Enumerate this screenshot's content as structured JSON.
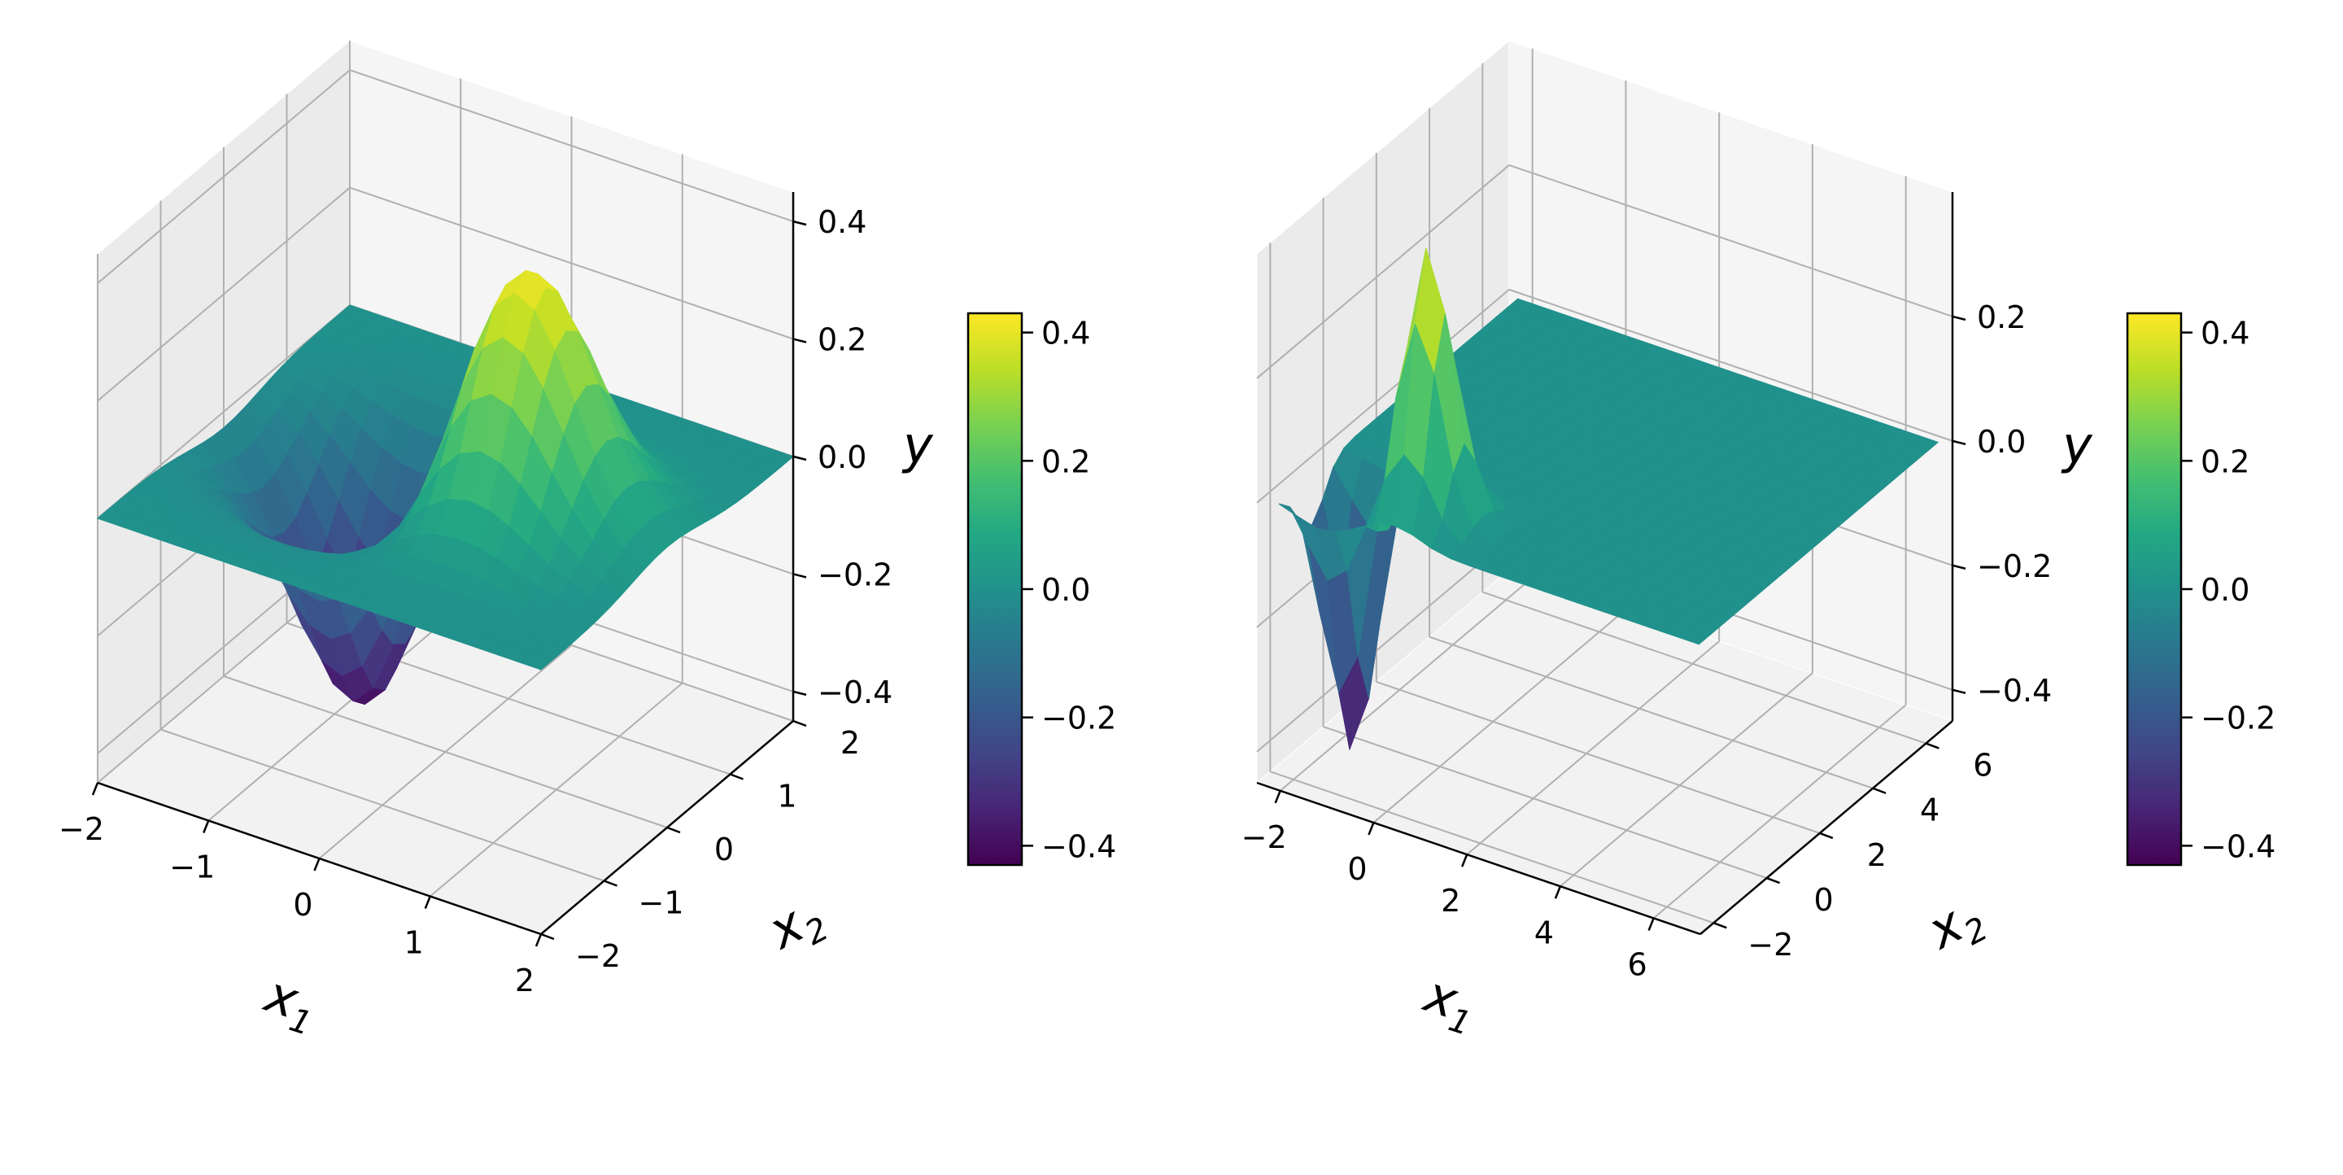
{
  "chart_data": [
    {
      "type": "surface",
      "xlabel": "x",
      "xlabel_sub": "1",
      "ylabel": "x",
      "ylabel_sub": "2",
      "zlabel": "y",
      "xlim": [
        -2,
        2
      ],
      "ylim": [
        -2,
        2
      ],
      "zlim": [
        -0.45,
        0.45
      ],
      "x_ticks": [
        "−2",
        "−1",
        "0",
        "1",
        "2"
      ],
      "y_ticks": [
        "−2",
        "−1",
        "0",
        "1",
        "2"
      ],
      "z_ticks": [
        "−0.4",
        "−0.2",
        "0.0",
        "0.2",
        "0.4"
      ],
      "x_tick_values": [
        -2,
        -1,
        0,
        1,
        2
      ],
      "y_tick_values": [
        -2,
        -1,
        0,
        1,
        2
      ],
      "z_tick_values": [
        -0.4,
        -0.2,
        0.0,
        0.2,
        0.4
      ],
      "features": [
        {
          "shape": "bump",
          "x": -0.71,
          "y": 0.0,
          "amplitude": -0.43,
          "spread": 0.55
        },
        {
          "shape": "bump",
          "x": 0.71,
          "y": 0.0,
          "amplitude": 0.43,
          "spread": 0.55
        }
      ],
      "grid": true,
      "colormap": "viridis",
      "colorbar": {
        "ticks": [
          "−0.4",
          "−0.2",
          "0.0",
          "0.2",
          "0.4"
        ],
        "values": [
          -0.4,
          -0.2,
          0.0,
          0.2,
          0.4
        ],
        "range": [
          -0.43,
          0.43
        ]
      }
    },
    {
      "type": "surface",
      "xlabel": "x",
      "xlabel_sub": "1",
      "ylabel": "x",
      "ylabel_sub": "2",
      "zlabel": "y",
      "xlim": [
        -2.5,
        7
      ],
      "ylim": [
        -2.5,
        7
      ],
      "zlim": [
        -0.45,
        0.4
      ],
      "x_ticks": [
        "−2",
        "0",
        "2",
        "4",
        "6"
      ],
      "y_ticks": [
        "−2",
        "0",
        "2",
        "4",
        "6"
      ],
      "z_ticks": [
        "−0.4",
        "−0.2",
        "0.0",
        "0.2"
      ],
      "x_tick_values": [
        -2,
        0,
        2,
        4,
        6
      ],
      "y_tick_values": [
        -2,
        0,
        2,
        4,
        6
      ],
      "z_tick_values": [
        -0.4,
        -0.2,
        0.0,
        0.2
      ],
      "features": [
        {
          "shape": "bump",
          "x": -1.3,
          "y": -1.0,
          "amplitude": -0.43,
          "spread": 0.5
        },
        {
          "shape": "bump",
          "x": 0.3,
          "y": -1.0,
          "amplitude": 0.43,
          "spread": 0.5
        }
      ],
      "grid": true,
      "colormap": "viridis",
      "colorbar": {
        "ticks": [
          "−0.4",
          "−0.2",
          "0.0",
          "0.2",
          "0.4"
        ],
        "values": [
          -0.4,
          -0.2,
          0.0,
          0.2,
          0.4
        ],
        "range": [
          -0.43,
          0.43
        ]
      }
    }
  ]
}
